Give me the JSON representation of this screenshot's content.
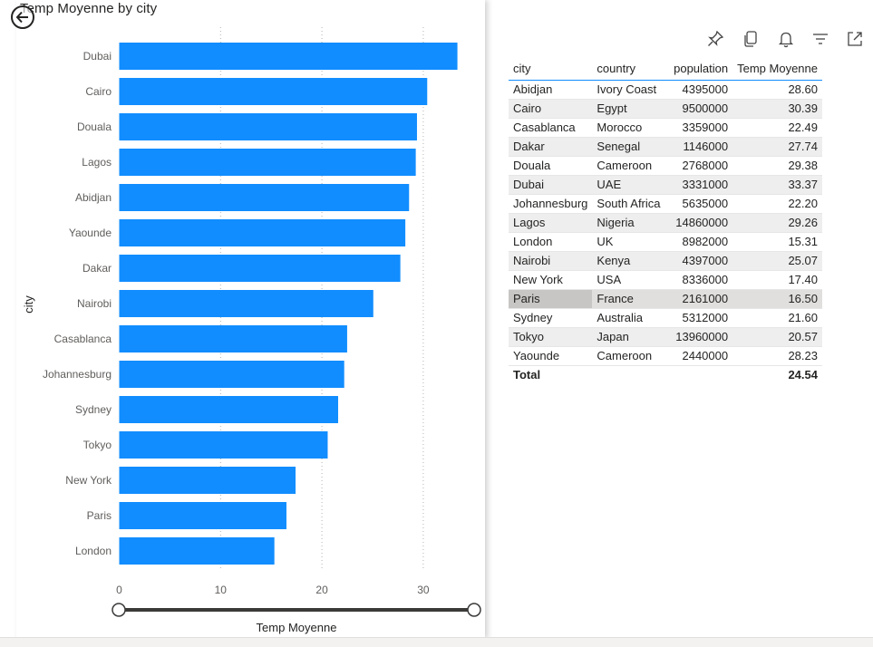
{
  "chart_data": {
    "type": "bar",
    "orientation": "horizontal",
    "title": "Temp Moyenne by city",
    "xlabel": "Temp Moyenne",
    "ylabel": "city",
    "categories": [
      "Dubai",
      "Cairo",
      "Douala",
      "Lagos",
      "Abidjan",
      "Yaounde",
      "Dakar",
      "Nairobi",
      "Casablanca",
      "Johannesburg",
      "Sydney",
      "Tokyo",
      "New York",
      "Paris",
      "London"
    ],
    "values": [
      33.37,
      30.39,
      29.38,
      29.26,
      28.6,
      28.23,
      27.74,
      25.07,
      22.49,
      22.2,
      21.6,
      20.57,
      17.4,
      16.5,
      15.31
    ],
    "xlim": [
      0,
      35
    ],
    "xticks": [
      "0",
      "10",
      "20",
      "30"
    ],
    "grid": "vertical-dotted",
    "bar_color": "#118dff"
  },
  "table": {
    "columns": [
      "city",
      "country",
      "population",
      "Temp Moyenne"
    ],
    "rows": [
      [
        "Abidjan",
        "Ivory Coast",
        "4395000",
        "28.60"
      ],
      [
        "Cairo",
        "Egypt",
        "9500000",
        "30.39"
      ],
      [
        "Casablanca",
        "Morocco",
        "3359000",
        "22.49"
      ],
      [
        "Dakar",
        "Senegal",
        "1146000",
        "27.74"
      ],
      [
        "Douala",
        "Cameroon",
        "2768000",
        "29.38"
      ],
      [
        "Dubai",
        "UAE",
        "3331000",
        "33.37"
      ],
      [
        "Johannesburg",
        "South Africa",
        "5635000",
        "22.20"
      ],
      [
        "Lagos",
        "Nigeria",
        "14860000",
        "29.26"
      ],
      [
        "London",
        "UK",
        "8982000",
        "15.31"
      ],
      [
        "Nairobi",
        "Kenya",
        "4397000",
        "25.07"
      ],
      [
        "New York",
        "USA",
        "8336000",
        "17.40"
      ],
      [
        "Paris",
        "France",
        "2161000",
        "16.50"
      ],
      [
        "Sydney",
        "Australia",
        "5312000",
        "21.60"
      ],
      [
        "Tokyo",
        "Japan",
        "13960000",
        "20.57"
      ],
      [
        "Yaounde",
        "Cameroon",
        "2440000",
        "28.23"
      ]
    ],
    "selected_row": "Paris",
    "total_label": "Total",
    "total_value": "24.54"
  },
  "toolbar": {
    "icons": [
      "pin-icon",
      "copy-icon",
      "bell-icon",
      "filter-icon",
      "focus-mode-icon"
    ]
  }
}
